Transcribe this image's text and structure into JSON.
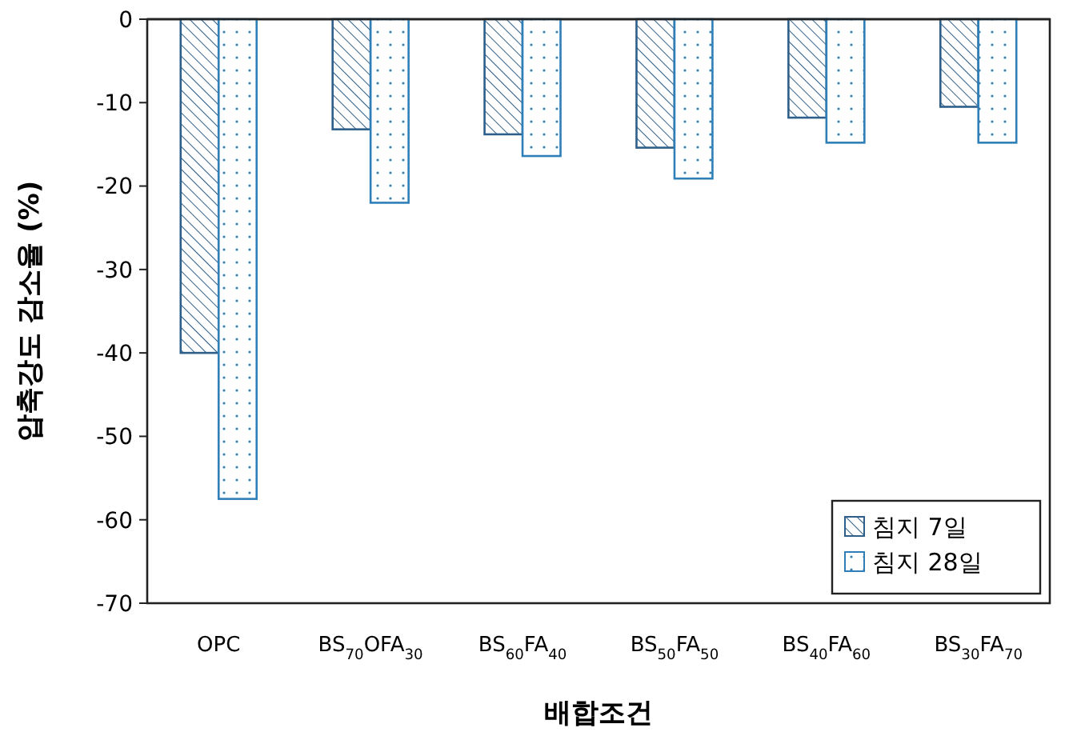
{
  "chart_data": {
    "type": "bar",
    "xlabel": "배합조건",
    "ylabel": "압축강도 감소율 (%)",
    "categories": [
      "OPC",
      "BS$_{70}$OFA$_{30}$",
      "BS$_{60}$FA$_{40}$",
      "BS$_{50}$FA$_{50}$",
      "BS$_{40}$FA$_{60}$",
      "BS$_{30}$FA$_{70}$"
    ],
    "series": [
      {
        "name": "침지 7일",
        "color": "#2e5f8a",
        "values": [
          -40,
          -13.2,
          -13.8,
          -15.4,
          -11.8,
          -10.5
        ]
      },
      {
        "name": "침지 28일",
        "color": "#2e7fb8",
        "values": [
          -57.5,
          -22,
          -16.4,
          -19.1,
          -14.8,
          -14.8
        ]
      }
    ],
    "ylim": [
      -70,
      0
    ],
    "yticks": [
      -70,
      -60,
      -50,
      -40,
      -30,
      -20,
      -10,
      0
    ],
    "grid": false,
    "legend": "bottom right"
  }
}
